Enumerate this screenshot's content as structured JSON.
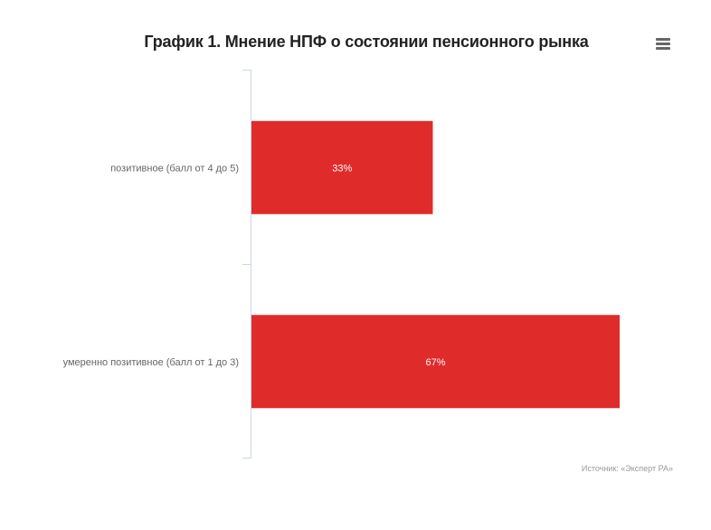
{
  "chart_data": {
    "type": "bar",
    "orientation": "horizontal",
    "title": "График 1. Мнение НПФ о состоянии пенсионного рынка",
    "categories": [
      "позитивное (балл от 4 до 5)",
      "умеренно позитивное (балл от 1 до 3)"
    ],
    "values": [
      33,
      67
    ],
    "data_labels": [
      "33%",
      "67%"
    ],
    "unit": "%",
    "xlim": [
      0,
      67
    ],
    "grid": false,
    "legend": "none",
    "bar_color": "#e02b2b",
    "data_label_color": "#ffffff",
    "axis_line_color": "#ccd6eb",
    "source": "Источник: «Эксперт РА»"
  },
  "menu": {
    "icon": "hamburger-menu-icon"
  }
}
